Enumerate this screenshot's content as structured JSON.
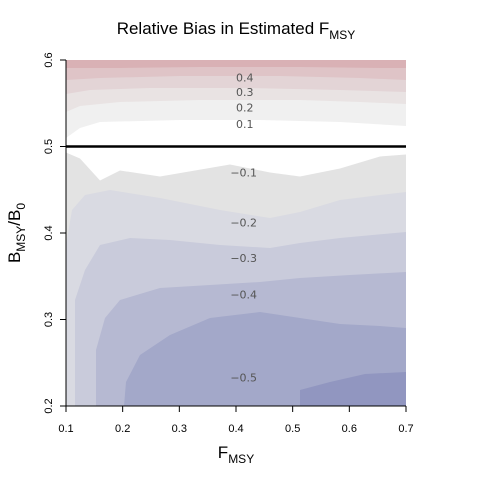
{
  "chart_data": {
    "type": "heatmap",
    "title": "Relative Bias in Estimated F",
    "title_sub": "MSY",
    "xlabel": "F",
    "xlabel_sub": "MSY",
    "ylabel_main": "B",
    "ylabel_sub": "MSY",
    "ylabel_sep": "/B",
    "ylabel_sub2": "0",
    "xlim": [
      0.1,
      0.7
    ],
    "ylim": [
      0.2,
      0.6
    ],
    "x_ticks": [
      "0.1",
      "0.2",
      "0.3",
      "0.4",
      "0.5",
      "0.6",
      "0.7"
    ],
    "y_ticks": [
      "0.2",
      "0.3",
      "0.4",
      "0.5",
      "0.6"
    ],
    "reference_line_y": 0.5,
    "grid": false,
    "colors": {
      "pos_0_1": "#f0f0f0",
      "pos_1_2": "#e9e3e3",
      "pos_2_3": "#e3d4d6",
      "pos_3_4": "#dfc4c7",
      "pos_4_5": "#d9b1b5",
      "neg_0_1": "#e3e3e3",
      "neg_1_2": "#d9dae2",
      "neg_2_3": "#c9cbdb",
      "neg_3_4": "#b6b9d2",
      "neg_4_5": "#a3a8c9",
      "neg_5_6": "#9196c0",
      "reference_line": "#000000"
    },
    "contour_labels": [
      {
        "text": "0.4",
        "x": 0.4,
        "y": 0.58
      },
      {
        "text": "0.3",
        "x": 0.4,
        "y": 0.563
      },
      {
        "text": "0.2",
        "x": 0.4,
        "y": 0.545
      },
      {
        "text": "0.1",
        "x": 0.4,
        "y": 0.526
      },
      {
        "text": "−0.1",
        "x": 0.39,
        "y": 0.47
      },
      {
        "text": "−0.2",
        "x": 0.39,
        "y": 0.412
      },
      {
        "text": "−0.3",
        "x": 0.39,
        "y": 0.371
      },
      {
        "text": "−0.4",
        "x": 0.39,
        "y": 0.329
      },
      {
        "text": "−0.5",
        "x": 0.39,
        "y": 0.233
      }
    ]
  }
}
